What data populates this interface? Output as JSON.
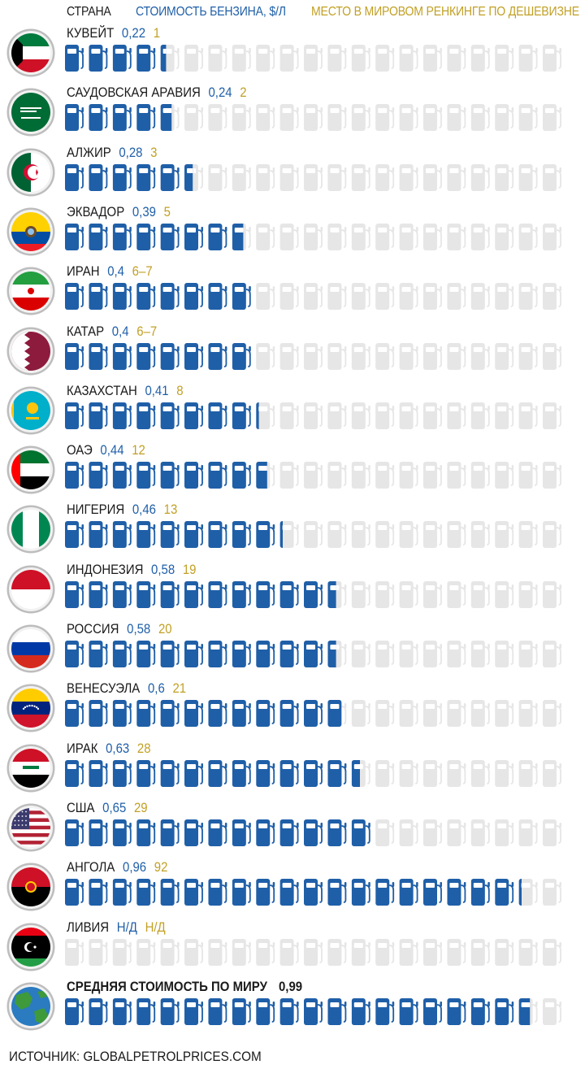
{
  "header": {
    "country": "СТРАНА",
    "price": "СТОИМОСТЬ БЕНЗИНА, $/Л",
    "rank": "МЕСТО В МИРОВОМ РЕНКИНГЕ ПО ДЕШЕВИЗНЕ"
  },
  "colors": {
    "pump_filled": "#1f5fa8",
    "pump_empty": "#e6e6e6",
    "price_text": "#1f5fa8",
    "rank_text": "#c2a025"
  },
  "chart_data": {
    "type": "bar",
    "pumps_total": 21,
    "pump_unit_usd_per_l": 0.05,
    "categories": [
      "КУВЕЙТ",
      "САУДОВСКАЯ АРАВИЯ",
      "АЛЖИР",
      "ЭКВАДОР",
      "ИРАН",
      "КАТАР",
      "КАЗАХСТАН",
      "ОАЭ",
      "НИГЕРИЯ",
      "ИНДОНЕЗИЯ",
      "РОССИЯ",
      "ВЕНЕСУЭЛА",
      "ИРАК",
      "США",
      "АНГОЛА",
      "ЛИВИЯ",
      "СРЕДНЯЯ СТОИМОСТЬ ПО МИРУ"
    ],
    "rows": [
      {
        "country": "КУВЕЙТ",
        "price": "0,22",
        "rank": "1",
        "value": 0.22,
        "flag": "kuwait"
      },
      {
        "country": "САУДОВСКАЯ АРАВИЯ",
        "price": "0,24",
        "rank": "2",
        "value": 0.24,
        "flag": "saudi"
      },
      {
        "country": "АЛЖИР",
        "price": "0,28",
        "rank": "3",
        "value": 0.28,
        "flag": "algeria"
      },
      {
        "country": "ЭКВАДОР",
        "price": "0,39",
        "rank": "5",
        "value": 0.39,
        "flag": "ecuador"
      },
      {
        "country": "ИРАН",
        "price": "0,4",
        "rank": "6–7",
        "value": 0.4,
        "flag": "iran"
      },
      {
        "country": "КАТАР",
        "price": "0,4",
        "rank": "6–7",
        "value": 0.4,
        "flag": "qatar"
      },
      {
        "country": "КАЗАХСТАН",
        "price": "0,41",
        "rank": "8",
        "value": 0.41,
        "flag": "kazakhstan"
      },
      {
        "country": "ОАЭ",
        "price": "0,44",
        "rank": "12",
        "value": 0.44,
        "flag": "uae"
      },
      {
        "country": "НИГЕРИЯ",
        "price": "0,46",
        "rank": "13",
        "value": 0.46,
        "flag": "nigeria"
      },
      {
        "country": "ИНДОНЕЗИЯ",
        "price": "0,58",
        "rank": "19",
        "value": 0.58,
        "flag": "indonesia"
      },
      {
        "country": "РОССИЯ",
        "price": "0,58",
        "rank": "20",
        "value": 0.58,
        "flag": "russia"
      },
      {
        "country": "ВЕНЕСУЭЛА",
        "price": "0,6",
        "rank": "21",
        "value": 0.6,
        "flag": "venezuela"
      },
      {
        "country": "ИРАК",
        "price": "0,63",
        "rank": "28",
        "value": 0.63,
        "flag": "iraq"
      },
      {
        "country": "США",
        "price": "0,65",
        "rank": "29",
        "value": 0.65,
        "flag": "usa"
      },
      {
        "country": "АНГОЛА",
        "price": "0,96",
        "rank": "92",
        "value": 0.96,
        "flag": "angola"
      },
      {
        "country": "ЛИВИЯ",
        "price": "Н/Д",
        "rank": "Н/Д",
        "value": 0,
        "flag": "libya"
      },
      {
        "country": "СРЕДНЯЯ СТОИМОСТЬ ПО МИРУ",
        "price": "0,99",
        "rank": "",
        "value": 0.99,
        "flag": "globe",
        "average": true
      }
    ]
  },
  "source": "ИСТОЧНИК: GLOBALPETROLPRICES.COM"
}
